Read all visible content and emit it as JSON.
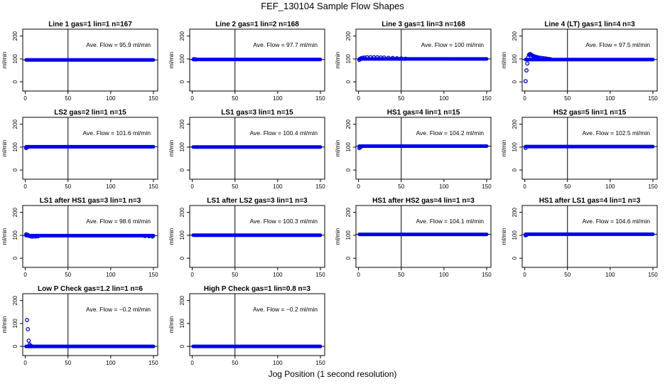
{
  "title": "FEF_130104  Sample Flow Shapes",
  "xlabel": "Jog Position (1 second resolution)",
  "ylabel": "ml/min",
  "colors": {
    "points": "#0000ee",
    "axes": "#000000",
    "reference_line": "#000000"
  },
  "chart_data": [
    {
      "type": "scatter",
      "title": "Line 1 gas=1 lin=1 n=167",
      "annotation": "Ave. Flow =  95.9  ml/min",
      "xlim": [
        -3,
        155
      ],
      "ylim": [
        -40,
        230
      ],
      "xticks": [
        0,
        50,
        100,
        150
      ],
      "yticks": [
        0,
        100,
        200
      ],
      "vline": 50,
      "hline": 95.9,
      "baseline": 95.9,
      "points": []
    },
    {
      "type": "scatter",
      "title": "Line 2 gas=1 lin=2 n=168",
      "annotation": "Ave. Flow =  97.7  ml/min",
      "xlim": [
        -3,
        155
      ],
      "ylim": [
        -40,
        230
      ],
      "xticks": [
        0,
        50,
        100,
        150
      ],
      "yticks": [
        0,
        100,
        200
      ],
      "vline": 50,
      "hline": 97.7,
      "baseline": 97.7,
      "points": [
        [
          2,
          99
        ],
        [
          4,
          98
        ]
      ]
    },
    {
      "type": "scatter",
      "title": "Line 3 gas=1 lin=3 n=168",
      "annotation": "Ave. Flow =  100  ml/min",
      "xlim": [
        -3,
        155
      ],
      "ylim": [
        -40,
        230
      ],
      "xticks": [
        0,
        50,
        100,
        150
      ],
      "yticks": [
        0,
        100,
        200
      ],
      "vline": 50,
      "hline": 100,
      "baseline": 100,
      "points": [
        [
          1,
          96
        ],
        [
          2,
          100
        ],
        [
          3,
          103
        ],
        [
          5,
          105
        ],
        [
          7,
          106
        ],
        [
          10,
          107
        ],
        [
          14,
          107
        ],
        [
          18,
          107
        ],
        [
          22,
          107
        ],
        [
          26,
          106
        ],
        [
          30,
          106
        ],
        [
          35,
          105
        ],
        [
          40,
          104
        ],
        [
          45,
          103
        ],
        [
          50,
          102
        ],
        [
          55,
          101
        ]
      ]
    },
    {
      "type": "scatter",
      "title": "Line 4 (LT) gas=1 lin=4 n=3",
      "annotation": "Ave. Flow =  97.5  ml/min",
      "xlim": [
        -3,
        155
      ],
      "ylim": [
        -40,
        230
      ],
      "xticks": [
        0,
        50,
        100,
        150
      ],
      "yticks": [
        0,
        100,
        200
      ],
      "vline": 50,
      "hline": 97.5,
      "baseline": 97.5,
      "points": [
        [
          1,
          3
        ],
        [
          2,
          50
        ],
        [
          3,
          80
        ],
        [
          4,
          106
        ],
        [
          5,
          118
        ],
        [
          6,
          121
        ],
        [
          7,
          120
        ],
        [
          8,
          117
        ],
        [
          9,
          115
        ],
        [
          10,
          113
        ],
        [
          11,
          111
        ],
        [
          12,
          110
        ],
        [
          13,
          109
        ],
        [
          14,
          108
        ],
        [
          15,
          107
        ],
        [
          16,
          106
        ],
        [
          18,
          105
        ],
        [
          20,
          104
        ],
        [
          22,
          103
        ],
        [
          24,
          102
        ],
        [
          26,
          101
        ],
        [
          28,
          100
        ],
        [
          30,
          99
        ]
      ]
    },
    {
      "type": "scatter",
      "title": "LS2 gas=2 lin=1 n=15",
      "annotation": "Ave. Flow =  101.6  ml/min",
      "xlim": [
        -3,
        155
      ],
      "ylim": [
        -40,
        230
      ],
      "xticks": [
        0,
        50,
        100,
        150
      ],
      "yticks": [
        0,
        100,
        200
      ],
      "vline": 50,
      "hline": 101.6,
      "baseline": 101.6,
      "points": [
        [
          1,
          96
        ],
        [
          2,
          99
        ]
      ]
    },
    {
      "type": "scatter",
      "title": "LS1 gas=3 lin=1 n=15",
      "annotation": "Ave. Flow =  100.4  ml/min",
      "xlim": [
        -3,
        155
      ],
      "ylim": [
        -40,
        230
      ],
      "xticks": [
        0,
        50,
        100,
        150
      ],
      "yticks": [
        0,
        100,
        200
      ],
      "vline": 50,
      "hline": 100.4,
      "baseline": 100.4,
      "points": []
    },
    {
      "type": "scatter",
      "title": "HS1 gas=4 lin=1 n=15",
      "annotation": "Ave. Flow =  104.2  ml/min",
      "xlim": [
        -3,
        155
      ],
      "ylim": [
        -40,
        230
      ],
      "xticks": [
        0,
        50,
        100,
        150
      ],
      "yticks": [
        0,
        100,
        200
      ],
      "vline": 50,
      "hline": 104.2,
      "baseline": 104.2,
      "points": [
        [
          1,
          96
        ],
        [
          2,
          100
        ],
        [
          3,
          102
        ]
      ]
    },
    {
      "type": "scatter",
      "title": "HS2 gas=5 lin=1 n=15",
      "annotation": "Ave. Flow =  102.5  ml/min",
      "xlim": [
        -3,
        155
      ],
      "ylim": [
        -40,
        230
      ],
      "xticks": [
        0,
        50,
        100,
        150
      ],
      "yticks": [
        0,
        100,
        200
      ],
      "vline": 50,
      "hline": 102.5,
      "baseline": 102.5,
      "points": [
        [
          1,
          97
        ]
      ]
    },
    {
      "type": "scatter",
      "title": "LS1 after HS1 gas=3 lin=1 n=3",
      "annotation": "Ave. Flow =  98.6  ml/min",
      "xlim": [
        -3,
        155
      ],
      "ylim": [
        -40,
        230
      ],
      "xticks": [
        0,
        50,
        100,
        150
      ],
      "yticks": [
        0,
        100,
        200
      ],
      "vline": 50,
      "hline": 98.6,
      "baseline": 98.6,
      "points": [
        [
          1,
          104
        ],
        [
          2,
          103
        ],
        [
          3,
          101
        ],
        [
          5,
          97
        ],
        [
          7,
          95
        ],
        [
          9,
          94
        ],
        [
          12,
          95
        ],
        [
          15,
          96
        ],
        [
          140,
          97
        ],
        [
          145,
          96
        ],
        [
          149,
          95
        ]
      ]
    },
    {
      "type": "scatter",
      "title": "LS1 after LS2 gas=3 lin=1 n=3",
      "annotation": "Ave. Flow =  100.3  ml/min",
      "xlim": [
        -3,
        155
      ],
      "ylim": [
        -40,
        230
      ],
      "xticks": [
        0,
        50,
        100,
        150
      ],
      "yticks": [
        0,
        100,
        200
      ],
      "vline": 50,
      "hline": 100.3,
      "baseline": 100.3,
      "points": []
    },
    {
      "type": "scatter",
      "title": "HS1 after HS2 gas=4 lin=1 n=3",
      "annotation": "Ave. Flow =  104.1  ml/min",
      "xlim": [
        -3,
        155
      ],
      "ylim": [
        -40,
        230
      ],
      "xticks": [
        0,
        50,
        100,
        150
      ],
      "yticks": [
        0,
        100,
        200
      ],
      "vline": 50,
      "hline": 104.1,
      "baseline": 104.1,
      "points": []
    },
    {
      "type": "scatter",
      "title": "HS1 after LS1 gas=4 lin=1 n=3",
      "annotation": "Ave. Flow =  104.6  ml/min",
      "xlim": [
        -3,
        155
      ],
      "ylim": [
        -40,
        230
      ],
      "xticks": [
        0,
        50,
        100,
        150
      ],
      "yticks": [
        0,
        100,
        200
      ],
      "vline": 50,
      "hline": 104.6,
      "baseline": 104.6,
      "points": [
        [
          1,
          100
        ],
        [
          2,
          102
        ]
      ]
    },
    {
      "type": "scatter",
      "title": "Low P Check gas=1.2 lin=1 n=6",
      "annotation": "Ave. Flow =  −0.2  ml/min",
      "xlim": [
        -3,
        155
      ],
      "ylim": [
        -40,
        230
      ],
      "xticks": [
        0,
        50,
        100,
        150
      ],
      "yticks": [
        0,
        100,
        200
      ],
      "vline": 50,
      "hline": -0.2,
      "baseline": -0.2,
      "points": [
        [
          2,
          115
        ],
        [
          3,
          75
        ],
        [
          4,
          25
        ],
        [
          5,
          8
        ],
        [
          6,
          3
        ],
        [
          7,
          1
        ]
      ]
    },
    {
      "type": "scatter",
      "title": "High P Check gas=1 lin=0.8 n=3",
      "annotation": "Ave. Flow =  −0.2  ml/min",
      "xlim": [
        -3,
        155
      ],
      "ylim": [
        -40,
        230
      ],
      "xticks": [
        0,
        50,
        100,
        150
      ],
      "yticks": [
        0,
        100,
        200
      ],
      "vline": 50,
      "hline": -0.2,
      "baseline": -0.2,
      "points": []
    }
  ]
}
